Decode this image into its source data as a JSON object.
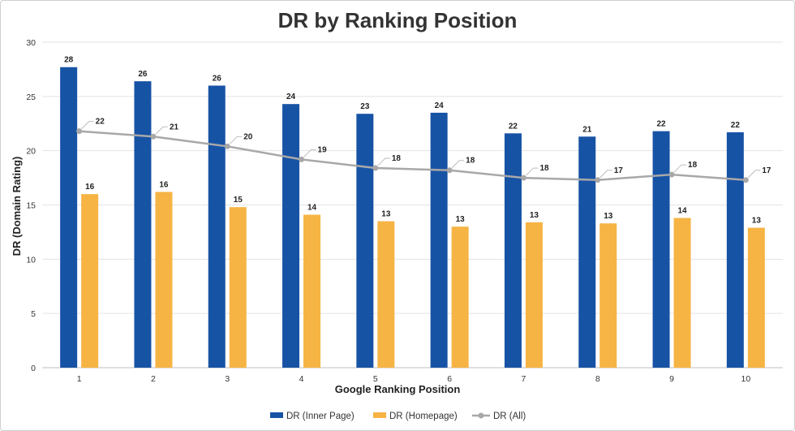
{
  "chart_data": {
    "type": "bar",
    "title": "DR by Ranking Position",
    "xlabel": "Google Ranking Position",
    "ylabel": "DR (Domain Rating)",
    "ylim": [
      0,
      30
    ],
    "yticks": [
      0,
      5,
      10,
      15,
      20,
      25,
      30
    ],
    "grid": true,
    "legend_position": "bottom",
    "categories": [
      "1",
      "2",
      "3",
      "4",
      "5",
      "6",
      "7",
      "8",
      "9",
      "10"
    ],
    "series": [
      {
        "name": "DR (Inner Page)",
        "kind": "bar",
        "color": "#1753a5",
        "values": [
          27.7,
          26.4,
          26.0,
          24.3,
          23.4,
          23.5,
          21.6,
          21.3,
          21.8,
          21.7
        ],
        "labels": [
          "28",
          "26",
          "26",
          "24",
          "23",
          "24",
          "22",
          "21",
          "22",
          "22"
        ]
      },
      {
        "name": "DR (Homepage)",
        "kind": "bar",
        "color": "#f6b444",
        "values": [
          16.0,
          16.2,
          14.8,
          14.1,
          13.5,
          13.0,
          13.4,
          13.3,
          13.8,
          12.9
        ],
        "labels": [
          "16",
          "16",
          "15",
          "14",
          "13",
          "13",
          "13",
          "13",
          "14",
          "13"
        ]
      },
      {
        "name": "DR (All)",
        "kind": "line",
        "color": "#a8a8a8",
        "values": [
          21.8,
          21.3,
          20.4,
          19.2,
          18.4,
          18.2,
          17.5,
          17.3,
          17.8,
          17.3
        ],
        "labels": [
          "22",
          "21",
          "20",
          "19",
          "18",
          "18",
          "18",
          "17",
          "18",
          "17"
        ]
      }
    ]
  }
}
